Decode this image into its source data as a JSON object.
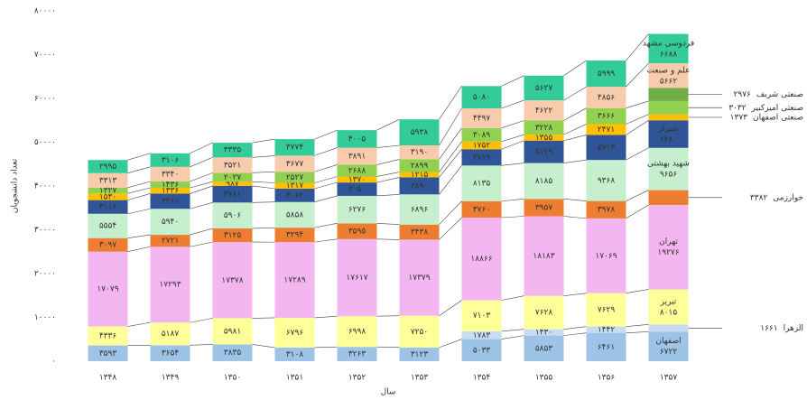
{
  "chart_data": {
    "type": "stacked_bar",
    "x_label": "سال",
    "y_label": "تعداد دانشجویان",
    "categories": [
      "۱۳۴۸",
      "۱۳۴۹",
      "۱۳۵۰",
      "۱۳۵۱",
      "۱۳۵۲",
      "۱۳۵۳",
      "۱۳۵۴",
      "۱۳۵۵",
      "۱۳۵۶",
      "۱۳۵۷"
    ],
    "ylim": [
      0,
      80000
    ],
    "yticks": [
      {
        "value": 0,
        "label": "۰"
      },
      {
        "value": 10000,
        "label": "۱۰۰۰۰"
      },
      {
        "value": 20000,
        "label": "۲۰۰۰۰"
      },
      {
        "value": 30000,
        "label": "۳۰۰۰۰"
      },
      {
        "value": 40000,
        "label": "۴۰۰۰۰"
      },
      {
        "value": 50000,
        "label": "۵۰۰۰۰"
      },
      {
        "value": 60000,
        "label": "۶۰۰۰۰"
      },
      {
        "value": 70000,
        "label": "۷۰۰۰۰"
      },
      {
        "value": 80000,
        "label": "۸۰۰۰۰"
      }
    ],
    "series": [
      {
        "name": "اصفهان",
        "color": "#9dc3e6",
        "values": [
          3593,
          3654,
          3835,
          3108,
          3263,
          3123,
          5033,
          5853,
          6461,
          6722
        ],
        "value_labels": [
          "۳۵۹۳",
          "۳۶۵۴",
          "۳۸۳۵",
          "۳۱۰۸",
          "۳۲۶۳",
          "۳۱۲۳",
          "۵۰۳۳",
          "۵۸۵۳",
          "۶۴۶۱",
          "۶۷۲۲"
        ]
      },
      {
        "name": "الزهرا",
        "color": "#c5dcf2",
        "values": [
          null,
          null,
          null,
          null,
          null,
          null,
          1783,
          1430,
          1442,
          1661
        ],
        "value_labels": [
          null,
          null,
          null,
          null,
          null,
          null,
          "۱۷۸۳",
          "۱۴۳۰",
          "۱۴۴۲",
          "۱۶۶۱"
        ]
      },
      {
        "name": "تبریز",
        "color": "#ffff99",
        "values": [
          4336,
          5187,
          5981,
          6796,
          6998,
          7250,
          7103,
          7628,
          7629,
          8015
        ],
        "value_labels": [
          "۴۳۳۶",
          "۵۱۸۷",
          "۵۹۸۱",
          "۶۷۹۶",
          "۶۹۹۸",
          "۷۲۵۰",
          "۷۱۰۳",
          "۷۶۲۸",
          "۷۶۲۹",
          "۸۰۱۵"
        ]
      },
      {
        "name": "تهران",
        "color": "#f3b6f0",
        "values": [
          17079,
          17293,
          17378,
          17289,
          17617,
          17379,
          18866,
          18183,
          17069,
          19276
        ],
        "value_labels": [
          "۱۷۰۷۹",
          "۱۷۲۹۳",
          "۱۷۳۷۸",
          "۱۷۲۸۹",
          "۱۷۶۱۷",
          "۱۷۳۷۹",
          "۱۸۸۶۶",
          "۱۸۱۸۳",
          "۱۷۰۶۹",
          "۱۹۲۷۶"
        ]
      },
      {
        "name": "خوارزمی",
        "color": "#ed7d31",
        "values": [
          3097,
          2721,
          3125,
          3294,
          3595,
          3438,
          3760,
          3957,
          3978,
          3382
        ],
        "value_labels": [
          "۳۰۹۷",
          "۲۷۲۱",
          "۳۱۲۵",
          "۳۲۹۴",
          "۳۵۹۵",
          "۳۴۳۸",
          "۳۷۶۰",
          "۳۹۵۷",
          "۳۹۷۸",
          "۳۳۸۲"
        ]
      },
      {
        "name": "شهید بهشتی",
        "color": "#c6efce",
        "values": [
          5554,
          5940,
          5906,
          5858,
          6276,
          6896,
          8135,
          8185,
          9368,
          9656
        ],
        "value_labels": [
          "۵۵۵۴",
          "۵۹۴۰",
          "۵۹۰۶",
          "۵۸۵۸",
          "۶۲۷۶",
          "۶۸۹۶",
          "۸۱۳۵",
          "۸۱۸۵",
          "۹۳۶۸",
          "۹۶۵۶"
        ]
      },
      {
        "name": "شیراز",
        "color": "#2f5597",
        "values": [
          3116,
          3461,
          3781,
          3062,
          3050,
          3890,
          3719,
          5129,
          5713,
          6280
        ],
        "value_labels": [
          "۳۱۱۶",
          "۳۴۶۱",
          "۳۷۸۱",
          "۳۰۶۲",
          "۳۰۵۰",
          "۳۸۹۰",
          "۳۷۱۹",
          "۵۱۲۹",
          "۵۷۱۳",
          "۶۲۸۰"
        ]
      },
      {
        "name": "صنعتی اصفهان",
        "color": "#ffc000",
        "values": [
          1530,
          1336,
          987,
          1317,
          1370,
          1215,
          1752,
          1355,
          2471,
          1373
        ],
        "value_labels": [
          "۱۵۳۰",
          "۱۳۳۶",
          "۹۸۷",
          "۱۳۱۷",
          "۱۳۷۰",
          "۱۲۱۵",
          "۱۷۵۲",
          "۱۳۵۵",
          "۲۴۷۱",
          "۱۳۷۳"
        ]
      },
      {
        "name": "صنعتی امیرکبیر",
        "color": "#92d050",
        "values": [
          1327,
          1436,
          2027,
          2527,
          2688,
          2899,
          3089,
          3228,
          3666,
          3032
        ],
        "value_labels": [
          "۱۳۲۷",
          "۱۴۳۶",
          "۲۰۲۷",
          "۲۵۲۷",
          "۲۶۸۸",
          "۲۸۹۹",
          "۳۰۸۹",
          "۳۲۲۸",
          "۳۶۶۶",
          "۳۰۳۲"
        ]
      },
      {
        "name": "صنعتی شریف",
        "color": "#70ad47",
        "values": [
          null,
          null,
          null,
          null,
          null,
          null,
          null,
          null,
          null,
          2976
        ],
        "value_labels": [
          null,
          null,
          null,
          null,
          null,
          null,
          null,
          null,
          null,
          "۲۹۷۶"
        ]
      },
      {
        "name": "علم و صنعت",
        "color": "#f8cbad",
        "values": [
          3313,
          3340,
          3521,
          3677,
          3891,
          3190,
          4497,
          4622,
          4856,
          5662
        ],
        "value_labels": [
          "۳۳۱۳",
          "۳۳۴۰",
          "۳۵۲۱",
          "۳۶۷۷",
          "۳۸۹۱",
          "۳۱۹۰",
          "۴۴۹۷",
          "۴۶۲۲",
          "۴۸۵۶",
          "۵۶۶۲"
        ]
      },
      {
        "name": "فردوسی مشهد",
        "color": "#33cc99",
        "values": [
          2995,
          3106,
          3335,
          3774,
          4005,
          5938,
          5080,
          5627,
          5999,
          6688
        ],
        "value_labels": [
          "۲۹۹۵",
          "۳۱۰۶",
          "۳۳۳۵",
          "۳۷۷۴",
          "۴۰۰۵",
          "۵۹۳۸",
          "۵۰۸۰",
          "۵۶۲۷",
          "۵۹۹۹",
          "۶۶۸۸"
        ]
      }
    ]
  }
}
